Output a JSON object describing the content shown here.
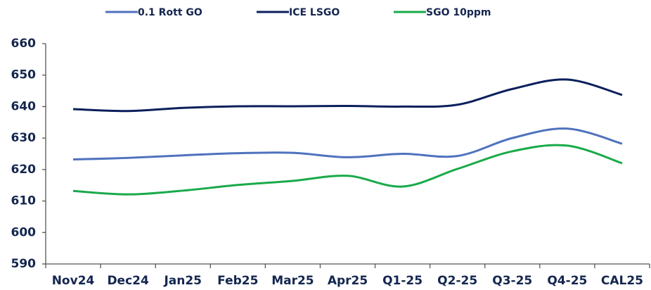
{
  "chart_data": {
    "type": "line",
    "categories": [
      "Nov24",
      "Dec24",
      "Jan25",
      "Feb25",
      "Mar25",
      "Apr25",
      "Q1-25",
      "Q2-25",
      "Q3-25",
      "Q4-25",
      "CAL25"
    ],
    "series": [
      {
        "name": "0.1 Rott GO",
        "color": "#4f72be",
        "values": [
          623.2,
          623.7,
          624.5,
          625.2,
          625.3,
          623.9,
          625.0,
          624.3,
          630.0,
          633.0,
          628.2
        ]
      },
      {
        "name": "ICE LSGO",
        "color": "#0a1f5c",
        "values": [
          639.2,
          638.6,
          639.6,
          640.1,
          640.1,
          640.2,
          640.0,
          640.6,
          645.6,
          648.6,
          643.7
        ]
      },
      {
        "name": "SGO 10ppm",
        "color": "#1aaa4a",
        "values": [
          613.2,
          612.1,
          613.3,
          615.1,
          616.4,
          618.0,
          614.6,
          620.2,
          625.8,
          627.6,
          622.0
        ]
      }
    ],
    "ylim": [
      590,
      660
    ],
    "yticks": [
      590,
      600,
      610,
      620,
      630,
      640,
      650,
      660
    ]
  }
}
